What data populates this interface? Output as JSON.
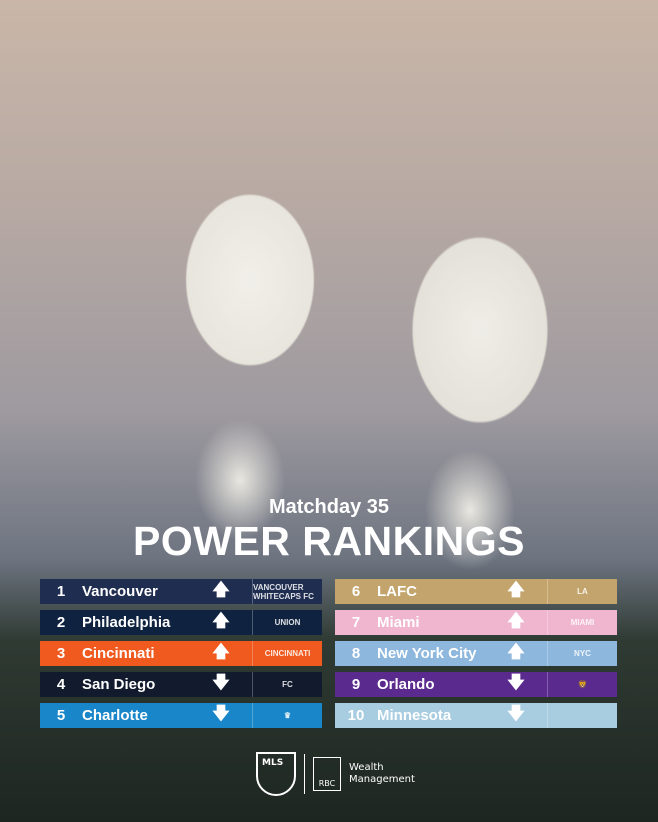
{
  "header": {
    "matchday": "Matchday 35",
    "title": "POWER RANKINGS"
  },
  "rankings": [
    {
      "rank": "1",
      "team": "Vancouver",
      "trend": "up",
      "arrow": "🡅",
      "logo": "VANCOUVER WHITECAPS FC",
      "color": "#1f2d50",
      "text": "#ffffff"
    },
    {
      "rank": "2",
      "team": "Philadelphia",
      "trend": "up",
      "arrow": "🡅",
      "logo": "UNION",
      "color": "#0f2340",
      "text": "#ffffff"
    },
    {
      "rank": "3",
      "team": "Cincinnati",
      "trend": "up",
      "arrow": "🡅",
      "logo": "CINCINNATI",
      "color": "#f05a1e",
      "text": "#ffffff"
    },
    {
      "rank": "4",
      "team": "San Diego",
      "trend": "down",
      "arrow": "🡇",
      "logo": "FC",
      "color": "#121a2d",
      "text": "#ffffff"
    },
    {
      "rank": "5",
      "team": "Charlotte",
      "trend": "down",
      "arrow": "🡇",
      "logo": "♛",
      "color": "#1886c9",
      "text": "#ffffff"
    },
    {
      "rank": "6",
      "team": "LAFC",
      "trend": "up",
      "arrow": "🡅",
      "logo": "LA",
      "color": "#c3a46c",
      "text": "#ffffff"
    },
    {
      "rank": "7",
      "team": "Miami",
      "trend": "up",
      "arrow": "🡅",
      "logo": "MIAMI",
      "color": "#f1b6cf",
      "text": "#ffffff"
    },
    {
      "rank": "8",
      "team": "New York City",
      "trend": "up",
      "arrow": "🡅",
      "logo": "NYC",
      "color": "#8db7dd",
      "text": "#ffffff"
    },
    {
      "rank": "9",
      "team": "Orlando",
      "trend": "down",
      "arrow": "🡇",
      "logo": "🦁",
      "color": "#5a2a8f",
      "text": "#ffffff"
    },
    {
      "rank": "10",
      "team": "Minnesota",
      "trend": "down",
      "arrow": "🡇",
      "logo": "",
      "color": "#a8cde1",
      "text": "#ffffff"
    }
  ],
  "footer": {
    "mls": "MLS",
    "rbc": "RBC",
    "sponsor": "Wealth Management"
  }
}
